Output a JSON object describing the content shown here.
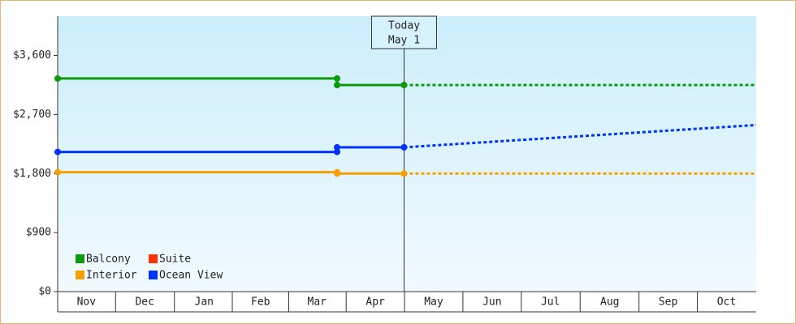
{
  "chart_data": {
    "type": "line",
    "ylim": [
      0,
      4200
    ],
    "yticks": [
      {
        "value": 0,
        "label": "$0"
      },
      {
        "value": 900,
        "label": "$900"
      },
      {
        "value": 1800,
        "label": "$1,800"
      },
      {
        "value": 2700,
        "label": "$2,700"
      },
      {
        "value": 3600,
        "label": "$3,600"
      }
    ],
    "xlim": [
      0,
      365
    ],
    "xticks": [
      {
        "value": 15,
        "label": "Nov"
      },
      {
        "value": 45.5,
        "label": "Dec"
      },
      {
        "value": 76.5,
        "label": "Jan"
      },
      {
        "value": 106,
        "label": "Feb"
      },
      {
        "value": 135.5,
        "label": "Mar"
      },
      {
        "value": 166,
        "label": "Apr"
      },
      {
        "value": 196.5,
        "label": "May"
      },
      {
        "value": 227,
        "label": "Jun"
      },
      {
        "value": 257.5,
        "label": "Jul"
      },
      {
        "value": 288.5,
        "label": "Aug"
      },
      {
        "value": 319,
        "label": "Sep"
      },
      {
        "value": 349.5,
        "label": "Oct"
      }
    ],
    "annotation": {
      "x": 181,
      "lines": [
        "Today",
        "May 1"
      ]
    },
    "legend": "bottom-left",
    "series": [
      {
        "name": "Balcony",
        "color": "#0a9a0a",
        "x": [
          0,
          146,
          146,
          181
        ],
        "values": [
          3250,
          3250,
          3150,
          3150
        ],
        "forecast": {
          "x": [
            181,
            365
          ],
          "values": [
            3150,
            3150
          ]
        }
      },
      {
        "name": "Suite",
        "color": "#ff3300",
        "x": [],
        "values": [],
        "forecast": {
          "x": [],
          "values": []
        }
      },
      {
        "name": "Interior",
        "color": "#f5a000",
        "x": [
          0,
          146,
          146,
          181
        ],
        "values": [
          1820,
          1820,
          1800,
          1800
        ],
        "forecast": {
          "x": [
            181,
            365
          ],
          "values": [
            1800,
            1800
          ]
        }
      },
      {
        "name": "Ocean View",
        "color": "#0033ff",
        "x": [
          0,
          146,
          146,
          181
        ],
        "values": [
          2130,
          2130,
          2200,
          2200
        ],
        "forecast": {
          "x": [
            181,
            365
          ],
          "values": [
            2200,
            2540
          ]
        }
      }
    ]
  }
}
